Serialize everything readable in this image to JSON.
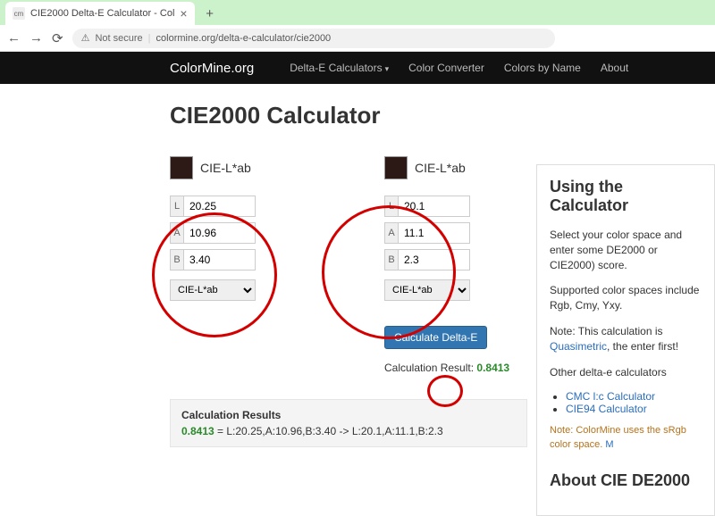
{
  "browser": {
    "tab_title": "CIE2000 Delta-E Calculator - Col",
    "favicon_text": "cm",
    "security_label": "Not secure",
    "url": "colormine.org/delta-e-calculator/cie2000"
  },
  "nav": {
    "brand": "ColorMine.org",
    "items": [
      "Delta-E Calculators",
      "Color Converter",
      "Colors by Name",
      "About"
    ]
  },
  "page": {
    "title": "CIE2000 Calculator",
    "col_label": "CIE-L*ab",
    "labels": {
      "L": "L",
      "A": "A",
      "B": "B"
    },
    "select_value": "CIE-L*ab",
    "color1": {
      "L": "20.25",
      "A": "10.96",
      "B": "3.40",
      "swatch": "#2d1a17"
    },
    "color2": {
      "L": "20.1",
      "A": "11.1",
      "B": "2.3",
      "swatch": "#2c1916"
    },
    "button": "Calculate Delta-E",
    "result_label": "Calculation Result:",
    "result_value": "0.8413",
    "results_box": {
      "header": "Calculation Results",
      "value": "0.8413",
      "detail": " = L:20.25,A:10.96,B:3.40 -> L:20.1,A:11.1,B:2.3"
    }
  },
  "sidebar": {
    "h1": "Using the Calculator",
    "p1": "Select your color space and enter some DE2000 or CIE2000) score.",
    "p2": "Supported color spaces include Rgb, Cmy, Yxy.",
    "p3a": "Note: This calculation is ",
    "p3_link": "Quasimetric",
    "p3b": ", the enter first!",
    "p4": "Other delta-e calculators",
    "links": [
      "CMC l:c Calculator",
      "CIE94 Calculator"
    ],
    "note": "Note: ColorMine uses the sRgb color space. ",
    "note_link": "M",
    "h2": "About CIE DE2000"
  },
  "colors": {
    "ring": "#d40000",
    "btn_bg": "#3276b1",
    "result_green": "#2a8a2a",
    "navbar_bg": "#111111",
    "tabstrip_bg": "#ccf2cc"
  }
}
